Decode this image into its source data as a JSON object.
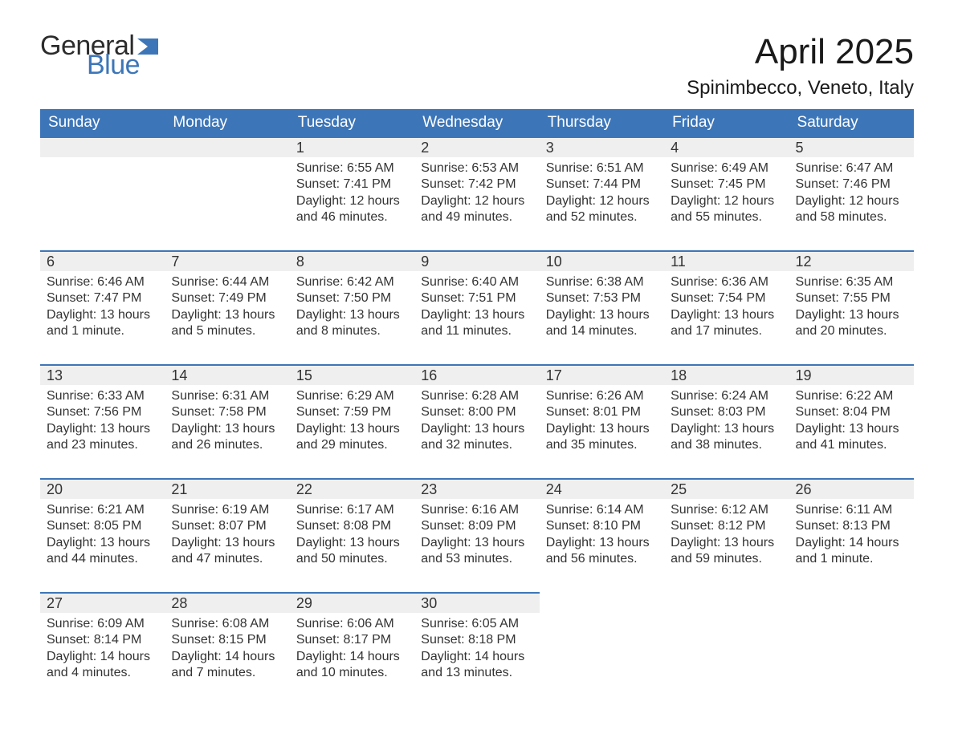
{
  "brand": {
    "word1": "General",
    "word2": "Blue",
    "word1_color": "#2c2c2c",
    "word2_color": "#3d76b8",
    "flag_color": "#3d76b8"
  },
  "title": "April 2025",
  "location": "Spinimbecco, Veneto, Italy",
  "colors": {
    "header_bg": "#3d76b8",
    "header_text": "#ffffff",
    "daynum_bg": "#efefef",
    "daynum_border": "#3d76b8",
    "body_text": "#333333",
    "page_bg": "#ffffff"
  },
  "typography": {
    "title_fontsize": 44,
    "location_fontsize": 24,
    "header_fontsize": 19,
    "daynum_fontsize": 18,
    "body_fontsize": 16,
    "logo_fontsize": 34
  },
  "weekdays": [
    "Sunday",
    "Monday",
    "Tuesday",
    "Wednesday",
    "Thursday",
    "Friday",
    "Saturday"
  ],
  "weeks": [
    [
      {
        "empty": true
      },
      {
        "empty": true
      },
      {
        "num": "1",
        "sunrise": "Sunrise: 6:55 AM",
        "sunset": "Sunset: 7:41 PM",
        "daylight": "Daylight: 12 hours and 46 minutes."
      },
      {
        "num": "2",
        "sunrise": "Sunrise: 6:53 AM",
        "sunset": "Sunset: 7:42 PM",
        "daylight": "Daylight: 12 hours and 49 minutes."
      },
      {
        "num": "3",
        "sunrise": "Sunrise: 6:51 AM",
        "sunset": "Sunset: 7:44 PM",
        "daylight": "Daylight: 12 hours and 52 minutes."
      },
      {
        "num": "4",
        "sunrise": "Sunrise: 6:49 AM",
        "sunset": "Sunset: 7:45 PM",
        "daylight": "Daylight: 12 hours and 55 minutes."
      },
      {
        "num": "5",
        "sunrise": "Sunrise: 6:47 AM",
        "sunset": "Sunset: 7:46 PM",
        "daylight": "Daylight: 12 hours and 58 minutes."
      }
    ],
    [
      {
        "num": "6",
        "sunrise": "Sunrise: 6:46 AM",
        "sunset": "Sunset: 7:47 PM",
        "daylight": "Daylight: 13 hours and 1 minute."
      },
      {
        "num": "7",
        "sunrise": "Sunrise: 6:44 AM",
        "sunset": "Sunset: 7:49 PM",
        "daylight": "Daylight: 13 hours and 5 minutes."
      },
      {
        "num": "8",
        "sunrise": "Sunrise: 6:42 AM",
        "sunset": "Sunset: 7:50 PM",
        "daylight": "Daylight: 13 hours and 8 minutes."
      },
      {
        "num": "9",
        "sunrise": "Sunrise: 6:40 AM",
        "sunset": "Sunset: 7:51 PM",
        "daylight": "Daylight: 13 hours and 11 minutes."
      },
      {
        "num": "10",
        "sunrise": "Sunrise: 6:38 AM",
        "sunset": "Sunset: 7:53 PM",
        "daylight": "Daylight: 13 hours and 14 minutes."
      },
      {
        "num": "11",
        "sunrise": "Sunrise: 6:36 AM",
        "sunset": "Sunset: 7:54 PM",
        "daylight": "Daylight: 13 hours and 17 minutes."
      },
      {
        "num": "12",
        "sunrise": "Sunrise: 6:35 AM",
        "sunset": "Sunset: 7:55 PM",
        "daylight": "Daylight: 13 hours and 20 minutes."
      }
    ],
    [
      {
        "num": "13",
        "sunrise": "Sunrise: 6:33 AM",
        "sunset": "Sunset: 7:56 PM",
        "daylight": "Daylight: 13 hours and 23 minutes."
      },
      {
        "num": "14",
        "sunrise": "Sunrise: 6:31 AM",
        "sunset": "Sunset: 7:58 PM",
        "daylight": "Daylight: 13 hours and 26 minutes."
      },
      {
        "num": "15",
        "sunrise": "Sunrise: 6:29 AM",
        "sunset": "Sunset: 7:59 PM",
        "daylight": "Daylight: 13 hours and 29 minutes."
      },
      {
        "num": "16",
        "sunrise": "Sunrise: 6:28 AM",
        "sunset": "Sunset: 8:00 PM",
        "daylight": "Daylight: 13 hours and 32 minutes."
      },
      {
        "num": "17",
        "sunrise": "Sunrise: 6:26 AM",
        "sunset": "Sunset: 8:01 PM",
        "daylight": "Daylight: 13 hours and 35 minutes."
      },
      {
        "num": "18",
        "sunrise": "Sunrise: 6:24 AM",
        "sunset": "Sunset: 8:03 PM",
        "daylight": "Daylight: 13 hours and 38 minutes."
      },
      {
        "num": "19",
        "sunrise": "Sunrise: 6:22 AM",
        "sunset": "Sunset: 8:04 PM",
        "daylight": "Daylight: 13 hours and 41 minutes."
      }
    ],
    [
      {
        "num": "20",
        "sunrise": "Sunrise: 6:21 AM",
        "sunset": "Sunset: 8:05 PM",
        "daylight": "Daylight: 13 hours and 44 minutes."
      },
      {
        "num": "21",
        "sunrise": "Sunrise: 6:19 AM",
        "sunset": "Sunset: 8:07 PM",
        "daylight": "Daylight: 13 hours and 47 minutes."
      },
      {
        "num": "22",
        "sunrise": "Sunrise: 6:17 AM",
        "sunset": "Sunset: 8:08 PM",
        "daylight": "Daylight: 13 hours and 50 minutes."
      },
      {
        "num": "23",
        "sunrise": "Sunrise: 6:16 AM",
        "sunset": "Sunset: 8:09 PM",
        "daylight": "Daylight: 13 hours and 53 minutes."
      },
      {
        "num": "24",
        "sunrise": "Sunrise: 6:14 AM",
        "sunset": "Sunset: 8:10 PM",
        "daylight": "Daylight: 13 hours and 56 minutes."
      },
      {
        "num": "25",
        "sunrise": "Sunrise: 6:12 AM",
        "sunset": "Sunset: 8:12 PM",
        "daylight": "Daylight: 13 hours and 59 minutes."
      },
      {
        "num": "26",
        "sunrise": "Sunrise: 6:11 AM",
        "sunset": "Sunset: 8:13 PM",
        "daylight": "Daylight: 14 hours and 1 minute."
      }
    ],
    [
      {
        "num": "27",
        "sunrise": "Sunrise: 6:09 AM",
        "sunset": "Sunset: 8:14 PM",
        "daylight": "Daylight: 14 hours and 4 minutes."
      },
      {
        "num": "28",
        "sunrise": "Sunrise: 6:08 AM",
        "sunset": "Sunset: 8:15 PM",
        "daylight": "Daylight: 14 hours and 7 minutes."
      },
      {
        "num": "29",
        "sunrise": "Sunrise: 6:06 AM",
        "sunset": "Sunset: 8:17 PM",
        "daylight": "Daylight: 14 hours and 10 minutes."
      },
      {
        "num": "30",
        "sunrise": "Sunrise: 6:05 AM",
        "sunset": "Sunset: 8:18 PM",
        "daylight": "Daylight: 14 hours and 13 minutes."
      },
      {
        "blank_tail": true
      },
      {
        "blank_tail": true
      },
      {
        "blank_tail": true
      }
    ]
  ]
}
